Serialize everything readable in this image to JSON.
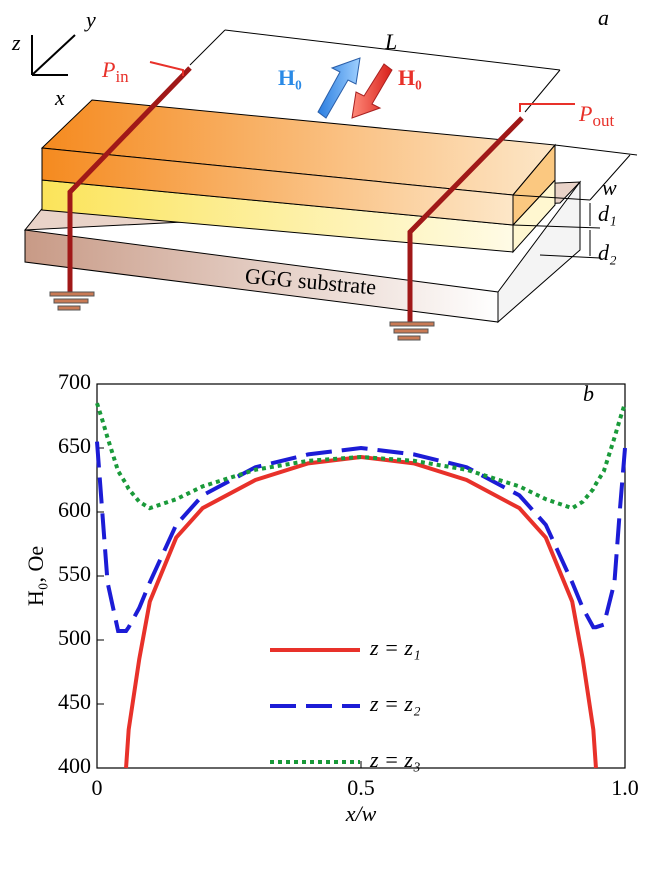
{
  "diagram": {
    "panel_label": "a",
    "axis_z": "z",
    "axis_y": "y",
    "axis_x": "x",
    "length": "L",
    "p_in": {
      "symbol": "P",
      "sub": "in"
    },
    "p_out": {
      "symbol": "P",
      "sub": "out"
    },
    "field_blue": "H₀",
    "field_red": "H₀",
    "width": "w",
    "thickness_1": "d₁",
    "thickness_2": "d₂",
    "substrate": "GGG substrate"
  },
  "chart_data": {
    "type": "line",
    "panel_label": "b",
    "x_label": "x/w",
    "y_label": "H₀, Oe",
    "xlim": [
      0,
      1
    ],
    "xticks": [
      0,
      0.5,
      {
        "value": 1,
        "label": "1.0"
      }
    ],
    "ylim": [
      400,
      700
    ],
    "yticks": [
      400,
      450,
      500,
      550,
      600,
      650,
      700
    ],
    "x": [
      0,
      0.01,
      0.02,
      0.04,
      0.055,
      0.06,
      0.08,
      0.1,
      0.15,
      0.2,
      0.3,
      0.4,
      0.5,
      0.6,
      0.7,
      0.8,
      0.85,
      0.9,
      0.92,
      0.94,
      0.945,
      0.96,
      0.98,
      0.99,
      1
    ],
    "series": [
      {
        "name": "z = z₁",
        "color": "#e8312a",
        "style": "solid",
        "values": [
          null,
          null,
          null,
          null,
          400,
          430,
          485,
          530,
          580,
          603,
          625,
          638,
          643,
          638,
          625,
          603,
          580,
          530,
          485,
          430,
          400,
          null,
          null,
          null,
          null
        ]
      },
      {
        "name": "z = z₂",
        "color": "#1c1cd6",
        "style": "dashed",
        "values": [
          655,
          600,
          545,
          507,
          507,
          510,
          525,
          545,
          590,
          613,
          635,
          645,
          650,
          645,
          635,
          613,
          590,
          545,
          525,
          510,
          510,
          512,
          545,
          600,
          650
        ]
      },
      {
        "name": "z = z₃",
        "color": "#1a9a3a",
        "style": "dotted",
        "values": [
          685,
          672,
          658,
          632,
          622,
          618,
          608,
          603,
          610,
          620,
          633,
          640,
          643,
          640,
          633,
          620,
          610,
          603,
          608,
          618,
          622,
          632,
          658,
          672,
          685
        ]
      }
    ]
  }
}
